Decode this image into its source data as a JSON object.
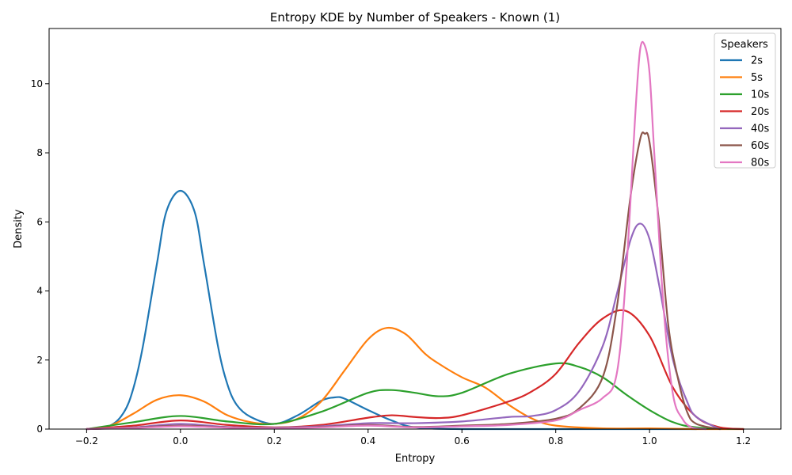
{
  "chart_data": {
    "type": "line",
    "title": "Entropy KDE by Number of Speakers - Known (1)",
    "xlabel": "Entropy",
    "ylabel": "Density",
    "xlim": [
      -0.28,
      1.28
    ],
    "ylim": [
      0,
      11.6
    ],
    "xticks": [
      -0.2,
      0.0,
      0.2,
      0.4,
      0.6,
      0.8,
      1.0,
      1.2
    ],
    "xtick_labels": [
      "−0.2",
      "0.0",
      "0.2",
      "0.4",
      "0.6",
      "0.8",
      "1.0",
      "1.2"
    ],
    "yticks": [
      0,
      2,
      4,
      6,
      8,
      10
    ],
    "ytick_labels": [
      "0",
      "2",
      "4",
      "6",
      "8",
      "10"
    ],
    "grid": false,
    "legend": {
      "title": "Speakers",
      "placement": "top-right"
    },
    "series": [
      {
        "name": "2s",
        "color": "#1f77b4",
        "x": [
          -0.2,
          -0.15,
          -0.12,
          -0.1,
          -0.08,
          -0.05,
          -0.03,
          0.0,
          0.03,
          0.05,
          0.08,
          0.1,
          0.12,
          0.15,
          0.2,
          0.25,
          0.3,
          0.33,
          0.35,
          0.4,
          0.45,
          0.5,
          0.6,
          0.8,
          1.0,
          1.1
        ],
        "y": [
          0.0,
          0.1,
          0.5,
          1.2,
          2.4,
          4.8,
          6.3,
          6.9,
          6.3,
          4.8,
          2.4,
          1.3,
          0.7,
          0.35,
          0.15,
          0.4,
          0.82,
          0.92,
          0.88,
          0.55,
          0.25,
          0.05,
          0.0,
          0.0,
          0.0,
          0.0
        ]
      },
      {
        "name": "5s",
        "color": "#ff7f0e",
        "x": [
          -0.2,
          -0.15,
          -0.1,
          -0.05,
          0.0,
          0.05,
          0.1,
          0.15,
          0.2,
          0.25,
          0.3,
          0.35,
          0.4,
          0.44,
          0.48,
          0.52,
          0.55,
          0.6,
          0.65,
          0.7,
          0.75,
          0.8,
          0.9,
          1.0,
          1.1,
          1.2
        ],
        "y": [
          0.0,
          0.1,
          0.45,
          0.85,
          0.98,
          0.8,
          0.4,
          0.2,
          0.15,
          0.3,
          0.8,
          1.7,
          2.6,
          2.93,
          2.75,
          2.2,
          1.9,
          1.5,
          1.2,
          0.7,
          0.3,
          0.1,
          0.02,
          0.02,
          0.0,
          0.0
        ]
      },
      {
        "name": "10s",
        "color": "#2ca02c",
        "x": [
          -0.2,
          -0.1,
          0.0,
          0.1,
          0.2,
          0.3,
          0.4,
          0.45,
          0.5,
          0.55,
          0.6,
          0.7,
          0.8,
          0.85,
          0.9,
          0.95,
          1.0,
          1.05,
          1.1,
          1.2
        ],
        "y": [
          0.0,
          0.2,
          0.38,
          0.22,
          0.15,
          0.5,
          1.05,
          1.13,
          1.05,
          0.95,
          1.05,
          1.6,
          1.9,
          1.8,
          1.5,
          1.0,
          0.55,
          0.2,
          0.05,
          0.0
        ]
      },
      {
        "name": "20s",
        "color": "#d62728",
        "x": [
          -0.2,
          -0.1,
          0.0,
          0.1,
          0.2,
          0.3,
          0.4,
          0.45,
          0.5,
          0.55,
          0.6,
          0.7,
          0.75,
          0.8,
          0.85,
          0.9,
          0.95,
          1.0,
          1.05,
          1.1,
          1.15,
          1.2
        ],
        "y": [
          0.0,
          0.1,
          0.25,
          0.12,
          0.05,
          0.12,
          0.33,
          0.4,
          0.35,
          0.32,
          0.4,
          0.8,
          1.1,
          1.6,
          2.5,
          3.2,
          3.42,
          2.7,
          1.2,
          0.35,
          0.05,
          0.0
        ]
      },
      {
        "name": "40s",
        "color": "#9467bd",
        "x": [
          -0.2,
          -0.1,
          0.0,
          0.1,
          0.2,
          0.3,
          0.4,
          0.5,
          0.6,
          0.7,
          0.75,
          0.8,
          0.85,
          0.9,
          0.93,
          0.96,
          0.98,
          1.0,
          1.02,
          1.05,
          1.08,
          1.1,
          1.15
        ],
        "y": [
          0.0,
          0.05,
          0.15,
          0.06,
          0.04,
          0.08,
          0.17,
          0.17,
          0.22,
          0.35,
          0.38,
          0.55,
          1.1,
          2.4,
          3.9,
          5.5,
          5.95,
          5.5,
          4.2,
          2.0,
          0.8,
          0.35,
          0.0
        ]
      },
      {
        "name": "60s",
        "color": "#8c564b",
        "x": [
          -0.2,
          -0.1,
          0.0,
          0.1,
          0.2,
          0.3,
          0.4,
          0.5,
          0.6,
          0.7,
          0.8,
          0.85,
          0.9,
          0.93,
          0.96,
          0.98,
          0.99,
          1.0,
          1.02,
          1.04,
          1.06,
          1.08,
          1.1,
          1.15
        ],
        "y": [
          0.0,
          0.04,
          0.1,
          0.05,
          0.03,
          0.06,
          0.12,
          0.06,
          0.1,
          0.15,
          0.3,
          0.6,
          1.5,
          3.5,
          6.8,
          8.4,
          8.55,
          8.3,
          6.0,
          3.0,
          1.5,
          0.5,
          0.15,
          0.0
        ]
      },
      {
        "name": "80s",
        "color": "#e377c2",
        "x": [
          -0.2,
          -0.1,
          0.0,
          0.1,
          0.2,
          0.3,
          0.4,
          0.5,
          0.6,
          0.7,
          0.8,
          0.85,
          0.9,
          0.93,
          0.95,
          0.97,
          0.98,
          0.99,
          1.0,
          1.01,
          1.03,
          1.05,
          1.07,
          1.09,
          1.12
        ],
        "y": [
          0.0,
          0.03,
          0.08,
          0.04,
          0.02,
          0.05,
          0.1,
          0.05,
          0.08,
          0.12,
          0.25,
          0.55,
          0.9,
          1.6,
          4.5,
          9.2,
          11.0,
          11.1,
          10.3,
          8.0,
          3.5,
          1.0,
          0.3,
          0.05,
          0.0
        ]
      }
    ]
  }
}
